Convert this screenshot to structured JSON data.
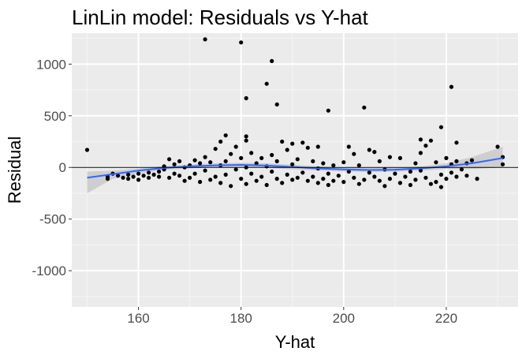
{
  "chart_data": {
    "type": "scatter",
    "title": "LinLin model: Residuals vs Y-hat",
    "xlabel": "Y-hat",
    "ylabel": "Residual",
    "xlim": [
      147,
      234
    ],
    "ylim": [
      -1350,
      1300
    ],
    "x_ticks": [
      160,
      180,
      200,
      220
    ],
    "x_tick_labels": [
      "160",
      "180",
      "200",
      "220"
    ],
    "x_minor_ticks": [
      150,
      170,
      190,
      210,
      230
    ],
    "y_ticks": [
      -1000,
      -500,
      0,
      500,
      1000
    ],
    "y_tick_labels": [
      "-1000",
      "-500",
      "0",
      "500",
      "1000"
    ],
    "y_minor_ticks": [
      -1250,
      -750,
      -250,
      250,
      750,
      1250
    ],
    "grid": true,
    "reference_line_y": 0,
    "smooth_line": {
      "x": [
        150,
        155,
        160,
        165,
        170,
        175,
        180,
        185,
        190,
        195,
        200,
        205,
        210,
        215,
        220,
        225,
        231
      ],
      "y": [
        -100,
        -65,
        -30,
        -5,
        10,
        20,
        25,
        18,
        5,
        -10,
        -20,
        -25,
        -22,
        -10,
        10,
        40,
        90
      ]
    },
    "smooth_band": {
      "upper": [
        -40,
        -30,
        -10,
        15,
        28,
        40,
        45,
        40,
        28,
        10,
        -2,
        -5,
        -2,
        10,
        40,
        100,
        200
      ],
      "lower": [
        -250,
        -110,
        -60,
        -25,
        -10,
        0,
        5,
        -5,
        -18,
        -30,
        -40,
        -45,
        -42,
        -30,
        -15,
        -15,
        0
      ]
    },
    "points": [
      {
        "x": 150,
        "y": 170
      },
      {
        "x": 154,
        "y": -110
      },
      {
        "x": 154,
        "y": -90
      },
      {
        "x": 155,
        "y": -60
      },
      {
        "x": 156,
        "y": -80
      },
      {
        "x": 157,
        "y": -100
      },
      {
        "x": 158,
        "y": -70
      },
      {
        "x": 158,
        "y": -110
      },
      {
        "x": 159,
        "y": -90
      },
      {
        "x": 160,
        "y": -60
      },
      {
        "x": 160,
        "y": -120
      },
      {
        "x": 161,
        "y": -80
      },
      {
        "x": 162,
        "y": -50
      },
      {
        "x": 162,
        "y": -100
      },
      {
        "x": 163,
        "y": -70
      },
      {
        "x": 164,
        "y": -90
      },
      {
        "x": 164,
        "y": -40
      },
      {
        "x": 165,
        "y": 10
      },
      {
        "x": 165,
        "y": -20
      },
      {
        "x": 166,
        "y": 80
      },
      {
        "x": 166,
        "y": -100
      },
      {
        "x": 167,
        "y": 30
      },
      {
        "x": 167,
        "y": -60
      },
      {
        "x": 168,
        "y": 60
      },
      {
        "x": 168,
        "y": -80
      },
      {
        "x": 169,
        "y": 0
      },
      {
        "x": 169,
        "y": -130
      },
      {
        "x": 170,
        "y": 20
      },
      {
        "x": 170,
        "y": -100
      },
      {
        "x": 171,
        "y": 70
      },
      {
        "x": 171,
        "y": -60
      },
      {
        "x": 172,
        "y": 40
      },
      {
        "x": 172,
        "y": -140
      },
      {
        "x": 173,
        "y": 1240
      },
      {
        "x": 173,
        "y": 100
      },
      {
        "x": 173,
        "y": -30
      },
      {
        "x": 174,
        "y": 50
      },
      {
        "x": 174,
        "y": -120
      },
      {
        "x": 175,
        "y": 180
      },
      {
        "x": 175,
        "y": -90
      },
      {
        "x": 176,
        "y": 250
      },
      {
        "x": 176,
        "y": 20
      },
      {
        "x": 176,
        "y": -150
      },
      {
        "x": 177,
        "y": 310
      },
      {
        "x": 177,
        "y": 60
      },
      {
        "x": 177,
        "y": -70
      },
      {
        "x": 178,
        "y": 130
      },
      {
        "x": 178,
        "y": -180
      },
      {
        "x": 179,
        "y": 200
      },
      {
        "x": 179,
        "y": -20
      },
      {
        "x": 180,
        "y": 1210
      },
      {
        "x": 180,
        "y": 90
      },
      {
        "x": 180,
        "y": -110
      },
      {
        "x": 181,
        "y": 670
      },
      {
        "x": 181,
        "y": 300
      },
      {
        "x": 181,
        "y": 260
      },
      {
        "x": 181,
        "y": 0
      },
      {
        "x": 181,
        "y": -160
      },
      {
        "x": 182,
        "y": 140
      },
      {
        "x": 182,
        "y": -60
      },
      {
        "x": 183,
        "y": 40
      },
      {
        "x": 183,
        "y": -130
      },
      {
        "x": 184,
        "y": 90
      },
      {
        "x": 184,
        "y": -90
      },
      {
        "x": 185,
        "y": 810
      },
      {
        "x": 185,
        "y": 10
      },
      {
        "x": 185,
        "y": -170
      },
      {
        "x": 186,
        "y": 1030
      },
      {
        "x": 186,
        "y": 120
      },
      {
        "x": 186,
        "y": -40
      },
      {
        "x": 187,
        "y": 610
      },
      {
        "x": 187,
        "y": 60
      },
      {
        "x": 187,
        "y": -110
      },
      {
        "x": 188,
        "y": 250
      },
      {
        "x": 188,
        "y": -150
      },
      {
        "x": 189,
        "y": 170
      },
      {
        "x": 189,
        "y": -70
      },
      {
        "x": 190,
        "y": 230
      },
      {
        "x": 190,
        "y": 30
      },
      {
        "x": 190,
        "y": -120
      },
      {
        "x": 191,
        "y": 80
      },
      {
        "x": 191,
        "y": -100
      },
      {
        "x": 192,
        "y": 240
      },
      {
        "x": 192,
        "y": -50
      },
      {
        "x": 193,
        "y": 190
      },
      {
        "x": 193,
        "y": -130
      },
      {
        "x": 194,
        "y": 60
      },
      {
        "x": 194,
        "y": -90
      },
      {
        "x": 195,
        "y": 200
      },
      {
        "x": 195,
        "y": -10
      },
      {
        "x": 195,
        "y": -150
      },
      {
        "x": 196,
        "y": 40
      },
      {
        "x": 196,
        "y": -110
      },
      {
        "x": 197,
        "y": 550
      },
      {
        "x": 197,
        "y": -60
      },
      {
        "x": 197,
        "y": -170
      },
      {
        "x": 198,
        "y": 20
      },
      {
        "x": 198,
        "y": -130
      },
      {
        "x": 199,
        "y": -80
      },
      {
        "x": 200,
        "y": 50
      },
      {
        "x": 200,
        "y": -140
      },
      {
        "x": 201,
        "y": 200
      },
      {
        "x": 201,
        "y": -40
      },
      {
        "x": 202,
        "y": 130
      },
      {
        "x": 202,
        "y": -100
      },
      {
        "x": 203,
        "y": 20
      },
      {
        "x": 203,
        "y": -160
      },
      {
        "x": 204,
        "y": 580
      },
      {
        "x": 204,
        "y": -120
      },
      {
        "x": 205,
        "y": 170
      },
      {
        "x": 205,
        "y": -50
      },
      {
        "x": 206,
        "y": 150
      },
      {
        "x": 206,
        "y": -90
      },
      {
        "x": 207,
        "y": 60
      },
      {
        "x": 207,
        "y": -130
      },
      {
        "x": 208,
        "y": -20
      },
      {
        "x": 208,
        "y": -180
      },
      {
        "x": 209,
        "y": 100
      },
      {
        "x": 209,
        "y": -110
      },
      {
        "x": 210,
        "y": -60
      },
      {
        "x": 211,
        "y": 90
      },
      {
        "x": 211,
        "y": -150
      },
      {
        "x": 212,
        "y": -90
      },
      {
        "x": 213,
        "y": -40
      },
      {
        "x": 213,
        "y": -170
      },
      {
        "x": 214,
        "y": 40
      },
      {
        "x": 214,
        "y": -120
      },
      {
        "x": 215,
        "y": 270
      },
      {
        "x": 215,
        "y": 140
      },
      {
        "x": 215,
        "y": -30
      },
      {
        "x": 216,
        "y": 210
      },
      {
        "x": 216,
        "y": -100
      },
      {
        "x": 217,
        "y": 260
      },
      {
        "x": 217,
        "y": -160
      },
      {
        "x": 218,
        "y": 50
      },
      {
        "x": 218,
        "y": -140
      },
      {
        "x": 219,
        "y": 390
      },
      {
        "x": 219,
        "y": -70
      },
      {
        "x": 219,
        "y": -190
      },
      {
        "x": 220,
        "y": 90
      },
      {
        "x": 220,
        "y": -110
      },
      {
        "x": 221,
        "y": 780
      },
      {
        "x": 221,
        "y": 30
      },
      {
        "x": 221,
        "y": -50
      },
      {
        "x": 222,
        "y": 240
      },
      {
        "x": 222,
        "y": 60
      },
      {
        "x": 222,
        "y": -90
      },
      {
        "x": 223,
        "y": -20
      },
      {
        "x": 224,
        "y": 40
      },
      {
        "x": 224,
        "y": -80
      },
      {
        "x": 225,
        "y": 70
      },
      {
        "x": 226,
        "y": -110
      },
      {
        "x": 230,
        "y": 200
      },
      {
        "x": 231,
        "y": 100
      },
      {
        "x": 231,
        "y": 30
      }
    ],
    "colors": {
      "panel_background": "#ebebeb",
      "grid_major": "#ffffff",
      "grid_minor": "#f5f5f5",
      "points": "#000000",
      "smooth_line": "#3366ff",
      "smooth_band": "#c4c4c4",
      "reference_line": "#000000"
    }
  }
}
